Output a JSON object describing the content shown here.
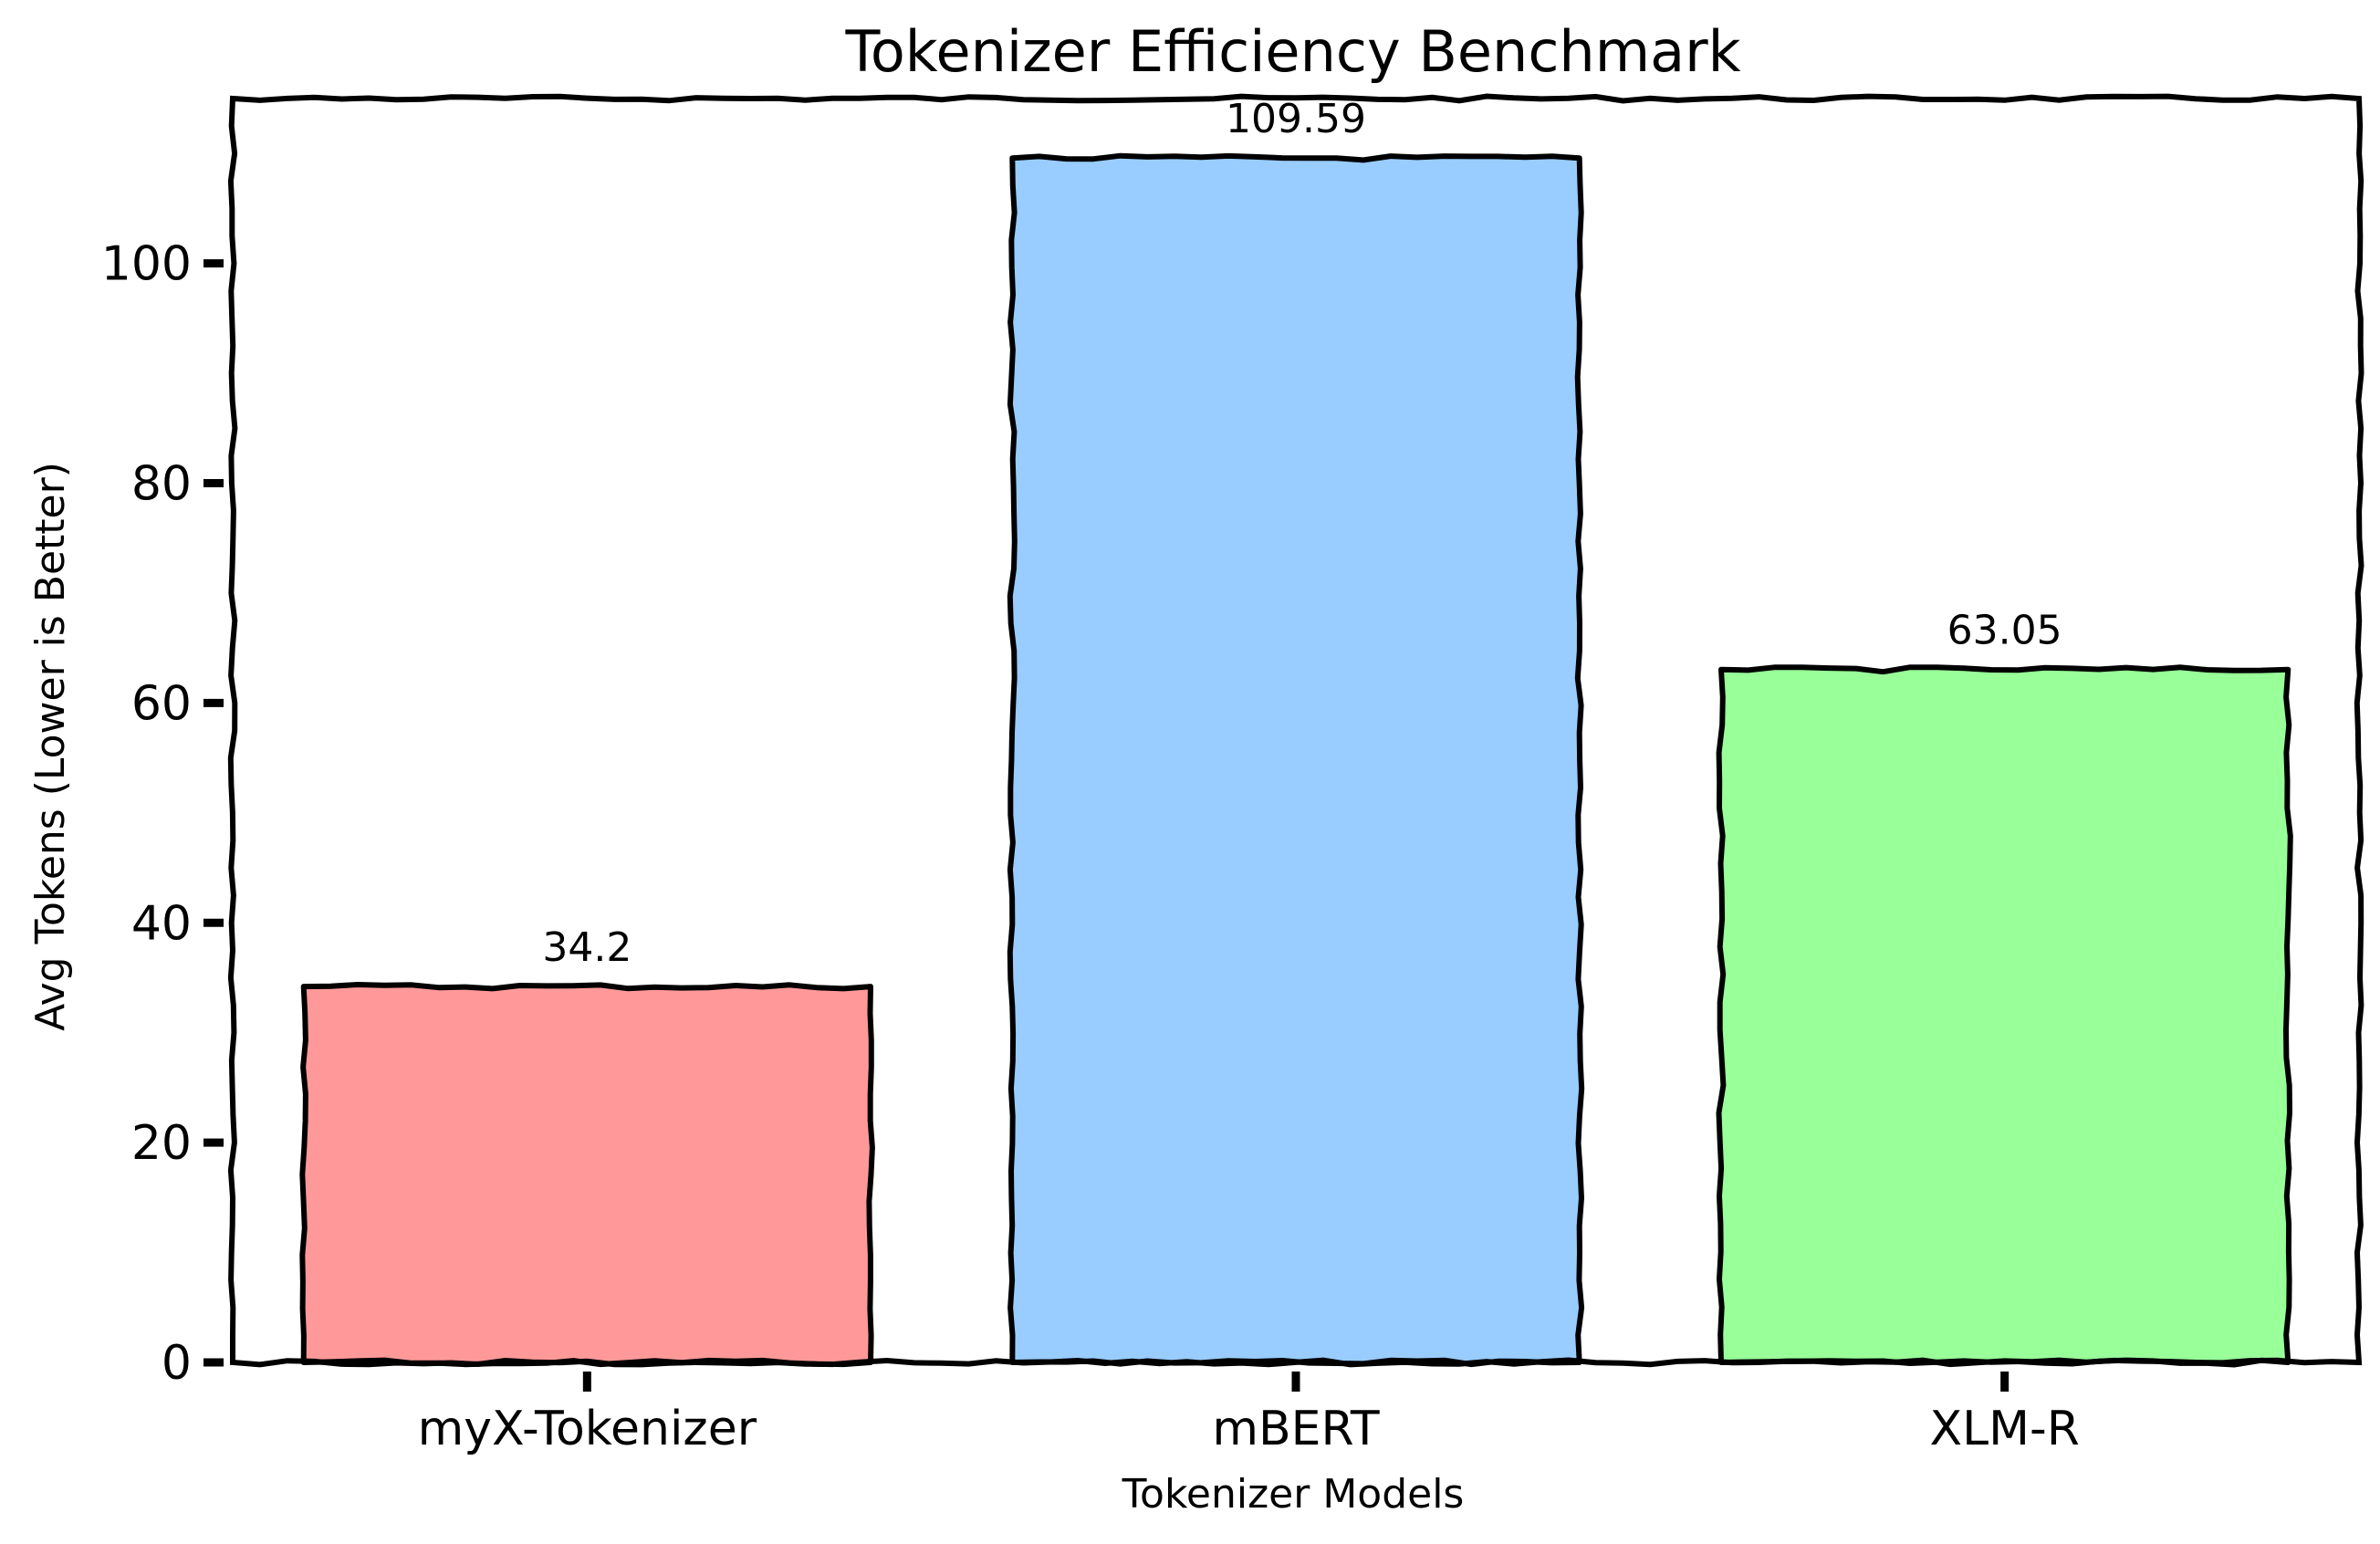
{
  "chart_data": {
    "type": "bar",
    "title": "Tokenizer Efficiency Benchmark",
    "xlabel": "Tokenizer Models",
    "ylabel": "Avg Tokens (Lower is Better)",
    "categories": [
      "myX-Tokenizer",
      "mBERT",
      "XLM-R"
    ],
    "values": [
      34.2,
      109.59,
      63.05
    ],
    "data_labels": [
      "34.2",
      "109.59",
      "63.05"
    ],
    "colors": [
      "#ff9999",
      "#99ccff",
      "#99ff99"
    ],
    "ylim": [
      0,
      115
    ],
    "yticks": [
      0,
      20,
      40,
      60,
      80,
      100
    ],
    "grid": false,
    "legend": "none",
    "style": "hand-drawn"
  }
}
